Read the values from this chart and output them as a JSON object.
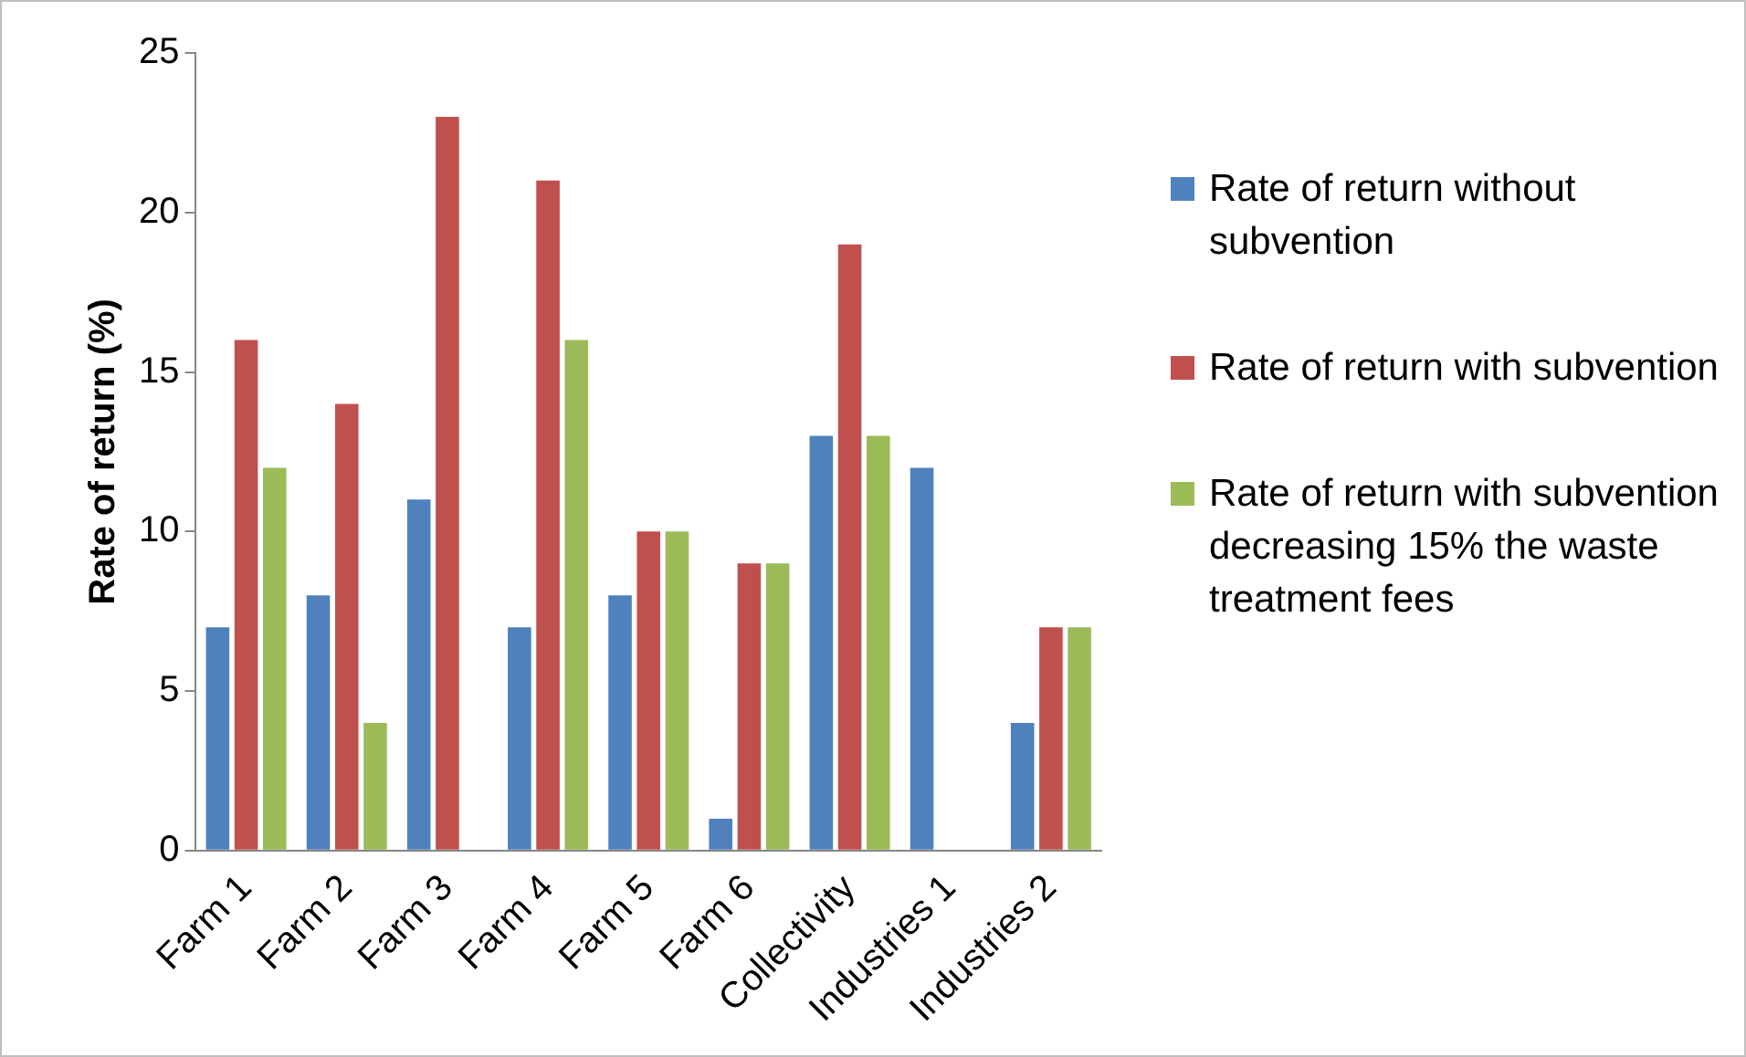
{
  "chart_data": {
    "type": "bar",
    "ylabel": "Rate of return (%)",
    "categories": [
      "Farm 1",
      "Farm 2",
      "Farm 3",
      "Farm 4",
      "Farm 5",
      "Farm 6",
      "Collectivity",
      "Industries 1",
      "Industries 2"
    ],
    "series": [
      {
        "name": "Rate of return without subvention",
        "color": "#4f81bd",
        "values": [
          7,
          8,
          11,
          7,
          8,
          1,
          13,
          12,
          4
        ]
      },
      {
        "name": "Rate of return with subvention",
        "color": "#c0504d",
        "values": [
          16,
          14,
          23,
          21,
          10,
          9,
          19,
          null,
          7
        ]
      },
      {
        "name": "Rate of return with subvention decreasing 15% the waste treatment fees",
        "color": "#9bbb59",
        "values": [
          12,
          4,
          null,
          16,
          10,
          9,
          13,
          null,
          7
        ]
      }
    ],
    "ylim": [
      0,
      25
    ],
    "yticks": [
      0,
      5,
      10,
      15,
      20,
      25
    ],
    "grid": false,
    "legend": "right"
  }
}
